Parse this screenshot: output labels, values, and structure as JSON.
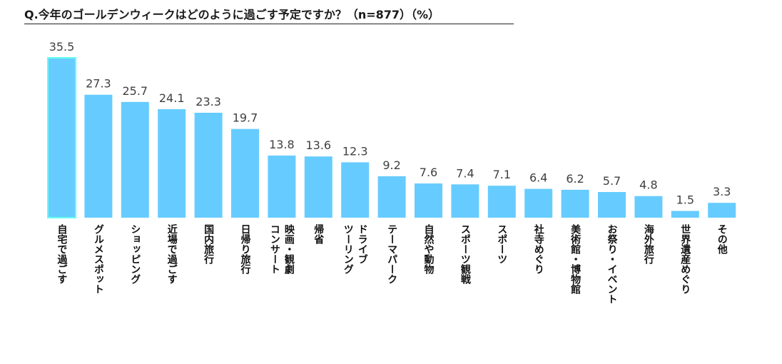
{
  "chart_data": {
    "type": "bar",
    "title": "Q.今年のゴールデンウィークはどのように過ごす予定ですか？（n=877）（%）",
    "categories": [
      "自宅で過ごす",
      "グルメスポット",
      "ショッピング",
      "近場で過ごす",
      "国内旅行",
      "日帰り旅行",
      "映画・観劇 コンサート",
      "帰省",
      "ドライブ ツーリング",
      "テーマパーク",
      "自然や動物",
      "スポーツ観戦",
      "スポーツ",
      "社寺めぐり",
      "美術館・博物館",
      "お祭り・イベント",
      "海外旅行",
      "世界遺産めぐり",
      "その他"
    ],
    "category_lines": [
      [
        "自宅で過ごす"
      ],
      [
        "グルメスポット"
      ],
      [
        "ショッピング"
      ],
      [
        "近場で過ごす"
      ],
      [
        "国内旅行"
      ],
      [
        "日帰り旅行"
      ],
      [
        "映画・観劇",
        "コンサート"
      ],
      [
        "帰省"
      ],
      [
        "ドライブ",
        "ツーリング"
      ],
      [
        "テーマパーク"
      ],
      [
        "自然や動物"
      ],
      [
        "スポーツ観戦"
      ],
      [
        "スポーツ"
      ],
      [
        "社寺めぐり"
      ],
      [
        "美術館・博物館"
      ],
      [
        "お祭り・イベント"
      ],
      [
        "海外旅行"
      ],
      [
        "世界遺産めぐり"
      ],
      [
        "その他"
      ]
    ],
    "values": [
      35.5,
      27.3,
      25.7,
      24.1,
      23.3,
      19.7,
      13.8,
      13.6,
      12.3,
      9.2,
      7.6,
      7.4,
      7.1,
      6.4,
      6.2,
      5.7,
      4.8,
      1.5,
      3.3
    ],
    "value_labels": [
      "35.5",
      "27.3",
      "25.7",
      "24.1",
      "23.3",
      "19.7",
      "13.8",
      "13.6",
      "12.3",
      "9.2",
      "7.6",
      "7.4",
      "7.1",
      "6.4",
      "6.2",
      "5.7",
      "4.8",
      "1.5",
      "3.3"
    ],
    "ylim": [
      0,
      36
    ],
    "grid": false,
    "legend": "none",
    "bar_color": "#66CCFF",
    "highlight_index": 0,
    "highlight_outline_color": "#66FFEE"
  }
}
